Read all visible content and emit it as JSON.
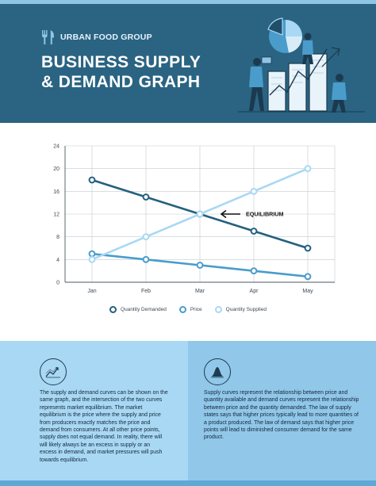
{
  "brand": {
    "name": "URBAN FOOD GROUP",
    "icon": "fork-knife-icon"
  },
  "title": {
    "line1": "BUSINESS SUPPLY",
    "line2": "& DEMAND GRAPH"
  },
  "colors": {
    "header_bg": "#2a6482",
    "quantity_demanded": "#24607f",
    "price": "#4a9ccb",
    "quantity_supplied": "#a9d8f4",
    "info_left_bg": "#a9d8f4",
    "info_right_bg": "#91c7e9"
  },
  "chart_data": {
    "type": "line",
    "categories": [
      "Jan",
      "Feb",
      "Mar",
      "Apr",
      "May"
    ],
    "series": [
      {
        "name": "Quantity Demanded",
        "values": [
          18,
          15,
          12,
          9,
          6
        ]
      },
      {
        "name": "Price",
        "values": [
          5,
          4,
          3,
          2,
          1
        ]
      },
      {
        "name": "Quantity Supplied",
        "values": [
          4,
          8,
          12,
          16,
          20
        ]
      }
    ],
    "ylim": [
      0,
      24
    ],
    "yticks": [
      0,
      4,
      8,
      12,
      16,
      20,
      24
    ],
    "grid": true,
    "legend": "bottom",
    "annotation": {
      "text": "EQUILIBRIUM",
      "category": "Mar",
      "value": 12
    }
  },
  "info": {
    "left_icon": "trend-chart-icon",
    "left_text": "The supply and demand curves can be shown on the same graph, and the intersection of the two curves represents market equilibrium. The market equilibrium is the price where the supply and price from producers exactly matches the price and demand from consumers. At all other price points, supply does not equal demand. In reality, there will will likely always be an excess in supply or an excess in demand, and market pressures will push towards equilibrium.",
    "right_icon": "bell-curve-icon",
    "right_text": "Supply curves represent the relationship between price and quantity available and demand curves represent the relationship between price and the quantity demanded. The law of supply states says that higher prices typically lead to more quantities of a product produced. The law of demand says that higher price points will lead to diminished consumer demand for the same product."
  }
}
